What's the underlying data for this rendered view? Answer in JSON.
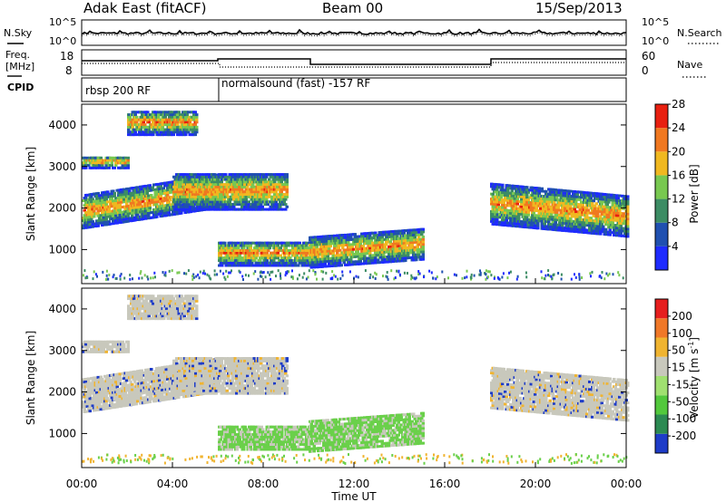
{
  "header": {
    "station": "Adak East (fitACF)",
    "beam": "Beam 00",
    "date": "15/Sep/2013"
  },
  "top_panel": {
    "left_label": "N.Sky",
    "right_label": "N.Search",
    "left_ticks": [
      "10^5",
      "10^0"
    ],
    "right_ticks": [
      "10^5",
      "10^0"
    ]
  },
  "freq_panel": {
    "left_label_1": "Freq.",
    "left_label_2": "[MHz]",
    "left_ticks": [
      "18",
      "8"
    ],
    "right_label": "Nave",
    "right_ticks": [
      "60",
      "0"
    ]
  },
  "cpid_panel": {
    "label": "CPID",
    "modes": [
      "rbsp 200 RF",
      "normalsound (fast) -157 RF"
    ]
  },
  "chart_data": [
    {
      "type": "heatmap",
      "title": "",
      "ylabel": "Slant Range [km]",
      "xlabel": "Time UT",
      "yticks": [
        "1000",
        "2000",
        "3000",
        "4000"
      ],
      "colorbar_label": "Power [dB]",
      "colorbar_ticks": [
        "4",
        "8",
        "12",
        "16",
        "20",
        "24",
        "28"
      ],
      "colorbar_colors": [
        "#1e2bff",
        "#2050b0",
        "#3c8c64",
        "#78c850",
        "#f0b820",
        "#f07820",
        "#e82010"
      ],
      "ylim": [
        180,
        4500
      ]
    },
    {
      "type": "heatmap",
      "title": "",
      "ylabel": "Slant Range [km]",
      "xlabel": "Time UT",
      "yticks": [
        "1000",
        "2000",
        "3000",
        "4000"
      ],
      "colorbar_label": "Velocity [m s",
      "colorbar_label_sup": "-1",
      "colorbar_label_end": "]",
      "colorbar_ticks": [
        "200",
        "100",
        "50",
        "15",
        "-15",
        "-50",
        "-100",
        "-200"
      ],
      "colorbar_colors": [
        "#1e3cc8",
        "#2c8a52",
        "#52c83c",
        "#a0e070",
        "#c8c8bc",
        "#f0b430",
        "#f07828",
        "#e61e1e"
      ],
      "ylim": [
        180,
        4500
      ]
    }
  ],
  "x_axis": {
    "ticks": [
      "00:00",
      "04:00",
      "08:00",
      "12:00",
      "16:00",
      "20:00",
      "00:00"
    ],
    "label": "Time UT"
  }
}
